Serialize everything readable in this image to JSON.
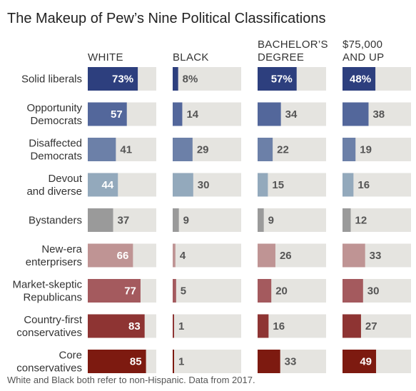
{
  "chart_data": {
    "type": "bar",
    "title": "The Makeup of Pew’s Nine Political Classifications",
    "note": "White and Black both refer to non-Hispanic. Data from 2017.",
    "columns": [
      {
        "key": "white",
        "label_lines": [
          "WHITE"
        ]
      },
      {
        "key": "black",
        "label_lines": [
          "BLACK"
        ]
      },
      {
        "key": "bachelors",
        "label_lines": [
          "BACHELOR’S",
          "DEGREE"
        ]
      },
      {
        "key": "income",
        "label_lines": [
          "$75,000",
          "AND UP"
        ]
      }
    ],
    "xlim": [
      0,
      100
    ],
    "rows": [
      {
        "label_lines": [
          "Solid liberals"
        ],
        "color": "#2d3f7e",
        "labels": [
          "73%",
          "8%",
          "57%",
          "48%"
        ],
        "values": [
          73,
          8,
          57,
          48
        ]
      },
      {
        "label_lines": [
          "Opportunity",
          "Democrats"
        ],
        "color": "#53679b",
        "labels": [
          "57",
          "14",
          "34",
          "38"
        ],
        "values": [
          57,
          14,
          34,
          38
        ]
      },
      {
        "label_lines": [
          "Disaffected",
          "Democrats"
        ],
        "color": "#6c80a8",
        "labels": [
          "41",
          "29",
          "22",
          "19"
        ],
        "values": [
          41,
          29,
          22,
          19
        ]
      },
      {
        "label_lines": [
          "Devout",
          "and diverse"
        ],
        "color": "#93a9bc",
        "labels": [
          "44",
          "30",
          "15",
          "16"
        ],
        "values": [
          44,
          30,
          15,
          16
        ]
      },
      {
        "label_lines": [
          "Bystanders"
        ],
        "color": "#9a9a9a",
        "labels": [
          "37",
          "9",
          "9",
          "12"
        ],
        "values": [
          37,
          9,
          9,
          12
        ]
      },
      {
        "label_lines": [
          "New-era",
          "enterprisers"
        ],
        "color": "#bf9494",
        "labels": [
          "66",
          "4",
          "26",
          "33"
        ],
        "values": [
          66,
          4,
          26,
          33
        ]
      },
      {
        "label_lines": [
          "Market-skeptic",
          "Republicans"
        ],
        "color": "#a45a5e",
        "labels": [
          "77",
          "5",
          "20",
          "30"
        ],
        "values": [
          77,
          5,
          20,
          30
        ]
      },
      {
        "label_lines": [
          "Country-first",
          "conservatives"
        ],
        "color": "#8e3433",
        "labels": [
          "83",
          "1",
          "16",
          "27"
        ],
        "values": [
          83,
          1,
          16,
          27
        ]
      },
      {
        "label_lines": [
          "Core",
          "conservatives"
        ],
        "color": "#7d1a10",
        "labels": [
          "85",
          "1",
          "33",
          "49"
        ],
        "values": [
          85,
          1,
          33,
          49
        ]
      }
    ]
  }
}
